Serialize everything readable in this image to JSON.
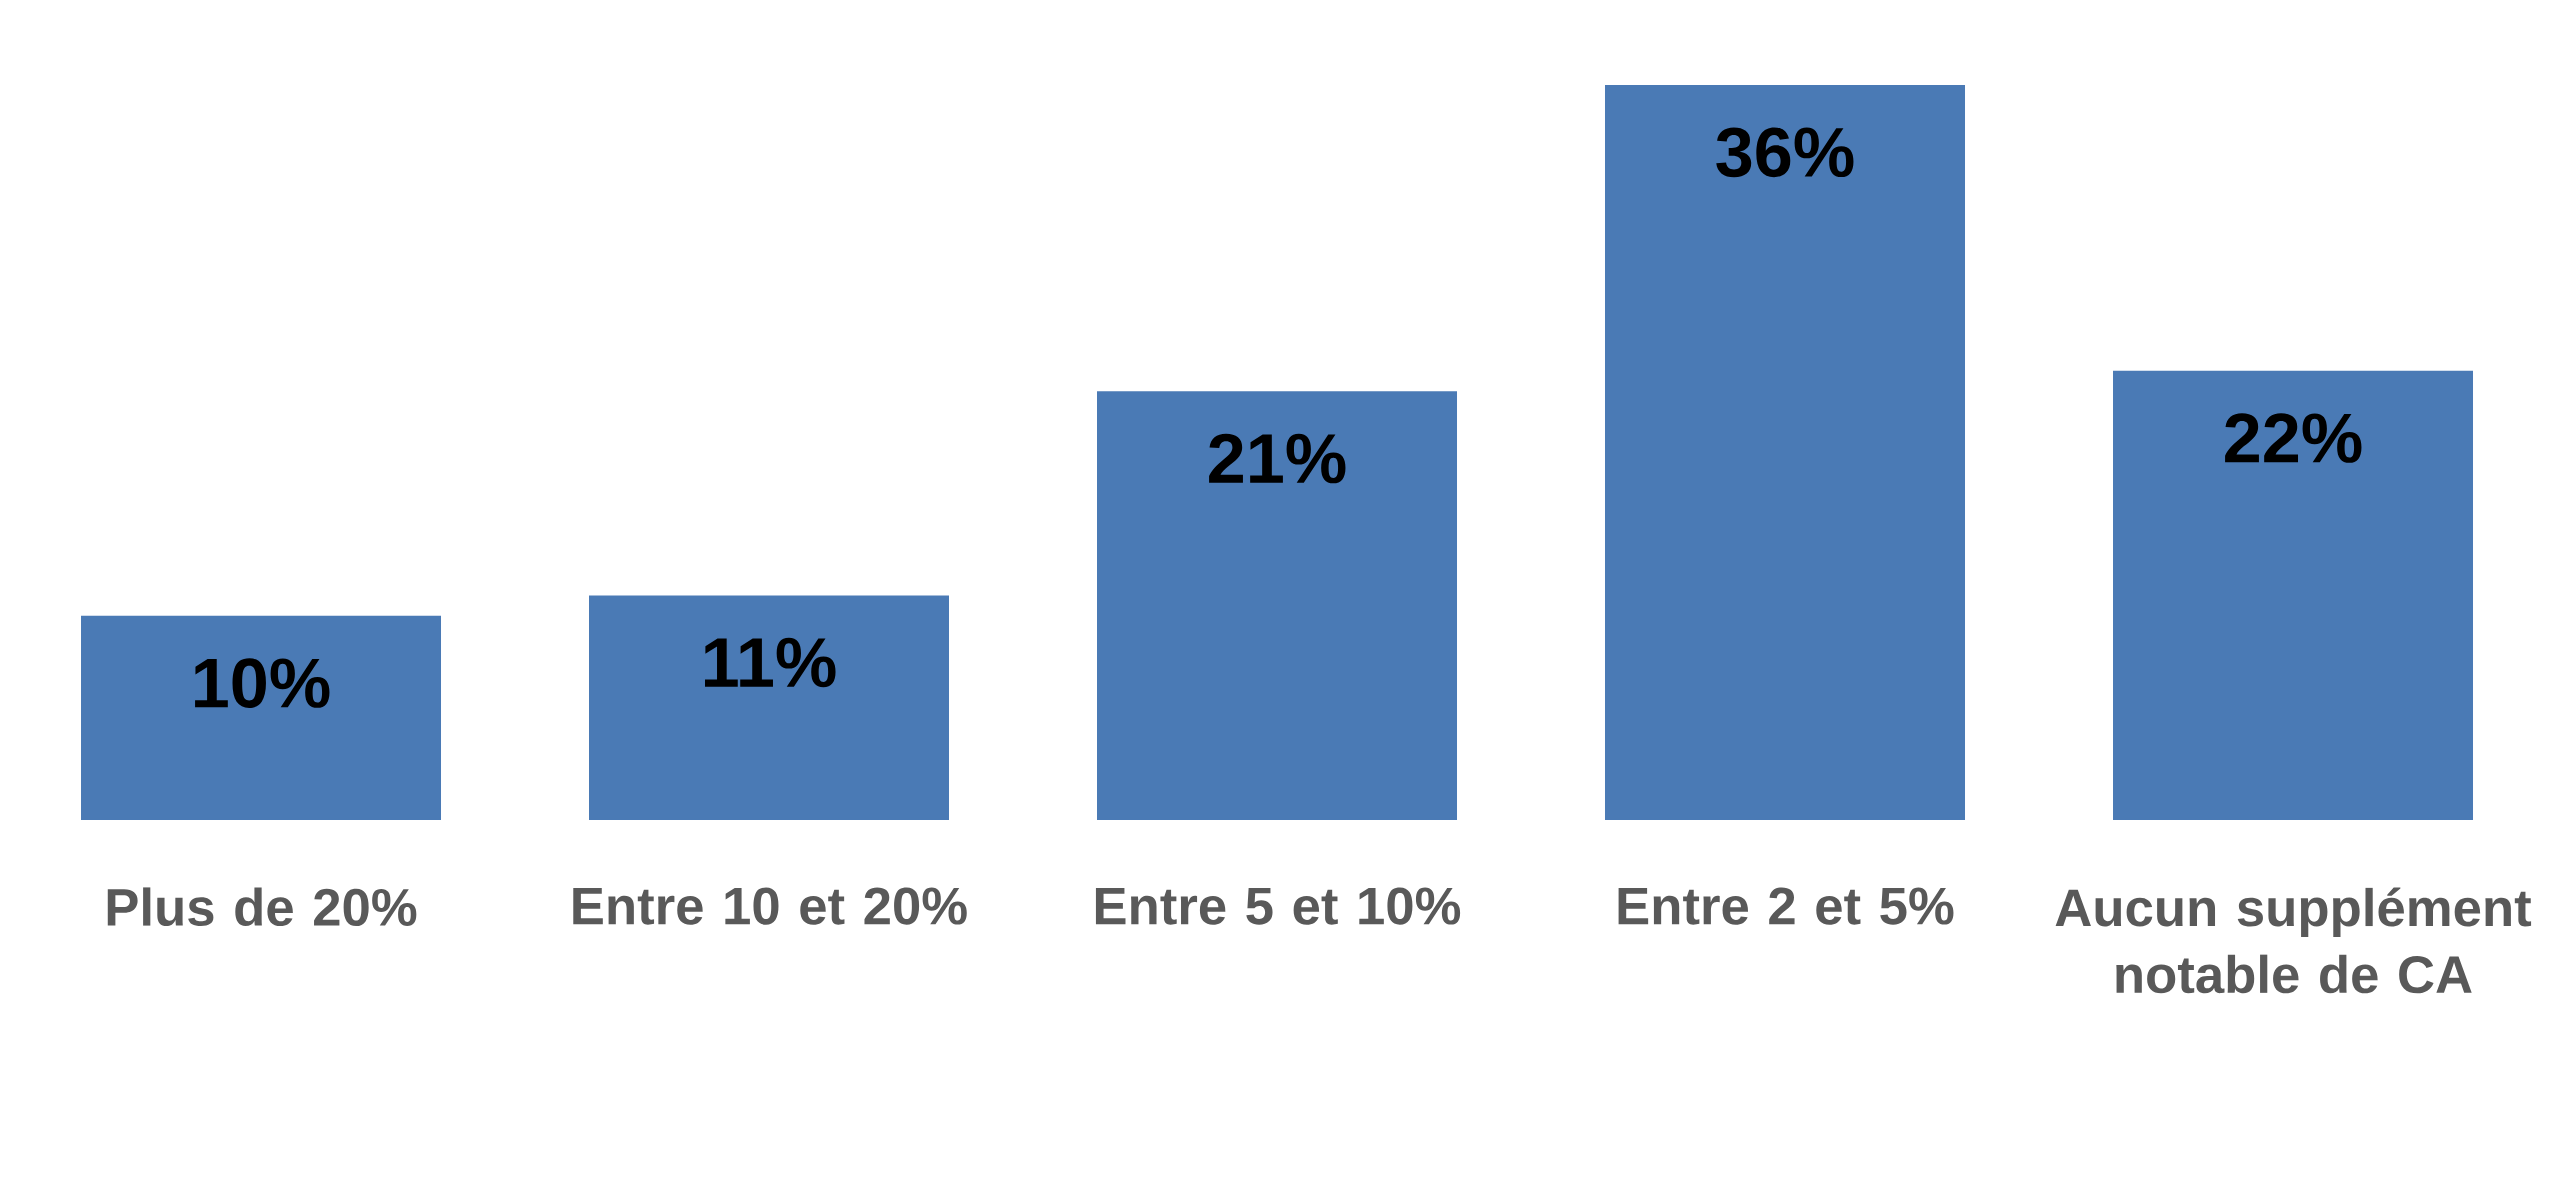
{
  "chart_data": {
    "type": "bar",
    "categories": [
      "Plus de 20%",
      "Entre 10 et 20%",
      "Entre 5 et 10%",
      "Entre 2 et 5%",
      "Aucun supplément notable de CA"
    ],
    "values": [
      10,
      11,
      21,
      36,
      22
    ],
    "value_labels": [
      "10%",
      "11%",
      "21%",
      "36%",
      "22%"
    ],
    "color": "#4a7ab5"
  }
}
